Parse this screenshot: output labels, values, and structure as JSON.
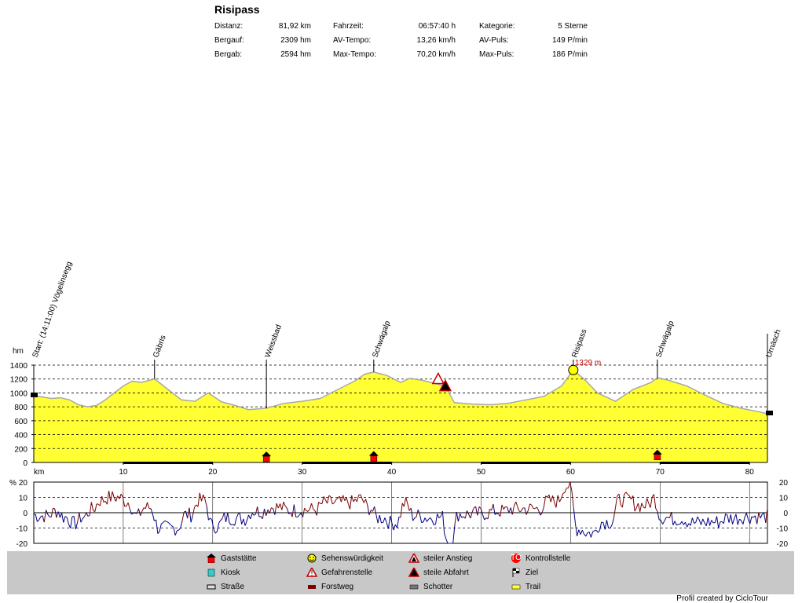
{
  "stats": {
    "title": "Risipass",
    "rows": [
      {
        "l1": "Distanz:",
        "v1": "81,92 km",
        "l2": "Fahrzeit:",
        "v2": "06:57:40 h",
        "l3": "Kategorie:",
        "v3": "5 Sterne"
      },
      {
        "l1": "Bergauf:",
        "v1": "2309 hm",
        "l2": "AV-Tempo:",
        "v2": "13,26 km/h",
        "l3": "AV-Puls:",
        "v3": "149 P/min"
      },
      {
        "l1": "Bergab:",
        "v1": "2594 hm",
        "l2": "Max-Tempo:",
        "v2": "70,20 km/h",
        "l3": "Max-Puls:",
        "v3": "186 P/min"
      }
    ]
  },
  "waypoints": [
    {
      "km": 0,
      "label": "Start: (14:11:00) Vögelinsegg"
    },
    {
      "km": 13.5,
      "label": "Gäbris"
    },
    {
      "km": 26,
      "label": "Weissbad"
    },
    {
      "km": 38,
      "label": "Schwägalp"
    },
    {
      "km": 60.3,
      "label": "Risipass"
    },
    {
      "km": 69.7,
      "label": "Schwägalp"
    },
    {
      "km": 82,
      "label": "Urnäsch"
    }
  ],
  "peak_label": "1329 m",
  "footer": "Profil created by CicloTour",
  "legend": [
    {
      "label": "Gaststätte",
      "icon": "house-icon"
    },
    {
      "label": "Kiosk",
      "icon": "kiosk-icon"
    },
    {
      "label": "Straße",
      "icon": "road-icon"
    },
    {
      "label": "Sehenswürdigkeit",
      "icon": "smiley-icon"
    },
    {
      "label": "Gefahrenstelle",
      "icon": "danger-icon"
    },
    {
      "label": "Forstweg",
      "icon": "forest-road-icon"
    },
    {
      "label": "steiler Anstieg",
      "icon": "steep-climb-icon"
    },
    {
      "label": "steile Abfahrt",
      "icon": "steep-descent-icon"
    },
    {
      "label": "Schotter",
      "icon": "gravel-icon"
    },
    {
      "label": "Kontrollstelle",
      "icon": "stop-icon"
    },
    {
      "label": "Ziel",
      "icon": "finish-flag-icon"
    },
    {
      "label": "Trail",
      "icon": "trail-icon"
    }
  ],
  "colors": {
    "fill": "#ffff33",
    "profile_line": "#a8a8a8",
    "climb": "#7a0000",
    "descent": "#000080",
    "legend_bg": "#c8c8c8"
  },
  "chart_data": [
    {
      "type": "area",
      "title": "",
      "ylabel": "hm",
      "xlabel": "km",
      "xlim": [
        0,
        82
      ],
      "ylim": [
        0,
        1400
      ],
      "xticks": [
        10,
        20,
        30,
        40,
        50,
        60,
        70,
        80
      ],
      "yticks": [
        0,
        200,
        400,
        600,
        800,
        1000,
        1200,
        1400
      ],
      "grid": true,
      "series": [
        {
          "x": [
            0,
            1,
            2,
            3,
            4,
            5,
            6,
            7,
            8,
            9,
            10,
            11,
            12,
            13.5,
            15,
            16.5,
            18,
            19.5,
            21,
            22.5,
            24,
            26,
            28,
            30,
            32,
            34,
            36,
            37,
            38,
            39.5,
            41,
            42,
            43.5,
            45,
            46,
            47,
            49,
            51,
            53,
            55,
            57,
            59,
            60.3,
            61.5,
            63,
            65,
            67,
            69,
            69.7,
            71,
            73,
            75,
            77,
            79,
            81,
            82
          ],
          "y": [
            960,
            940,
            920,
            930,
            900,
            830,
            800,
            820,
            900,
            1000,
            1100,
            1170,
            1150,
            1200,
            1050,
            900,
            880,
            1000,
            870,
            820,
            760,
            780,
            850,
            880,
            920,
            1050,
            1180,
            1270,
            1300,
            1250,
            1150,
            1210,
            1180,
            1130,
            1100,
            860,
            840,
            830,
            850,
            900,
            950,
            1100,
            1329,
            1200,
            1000,
            880,
            1050,
            1150,
            1220,
            1180,
            1100,
            970,
            850,
            780,
            730,
            700
          ]
        }
      ]
    },
    {
      "type": "line",
      "title": "",
      "ylabel": "%",
      "xlim": [
        0,
        82
      ],
      "ylim": [
        -20,
        20
      ],
      "yticks": [
        20,
        10,
        0,
        -10,
        -20
      ],
      "grid": true,
      "series": [
        {
          "name": "Steigung",
          "derived_from": "elevation"
        }
      ]
    }
  ]
}
